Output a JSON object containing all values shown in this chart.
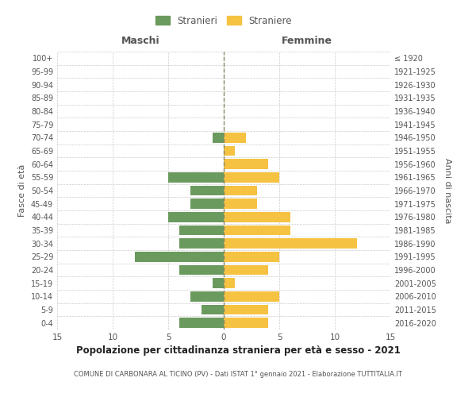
{
  "age_groups": [
    "0-4",
    "5-9",
    "10-14",
    "15-19",
    "20-24",
    "25-29",
    "30-34",
    "35-39",
    "40-44",
    "45-49",
    "50-54",
    "55-59",
    "60-64",
    "65-69",
    "70-74",
    "75-79",
    "80-84",
    "85-89",
    "90-94",
    "95-99",
    "100+"
  ],
  "birth_years": [
    "2016-2020",
    "2011-2015",
    "2006-2010",
    "2001-2005",
    "1996-2000",
    "1991-1995",
    "1986-1990",
    "1981-1985",
    "1976-1980",
    "1971-1975",
    "1966-1970",
    "1961-1965",
    "1956-1960",
    "1951-1955",
    "1946-1950",
    "1941-1945",
    "1936-1940",
    "1931-1935",
    "1926-1930",
    "1921-1925",
    "≤ 1920"
  ],
  "males": [
    4,
    2,
    3,
    1,
    4,
    8,
    4,
    4,
    5,
    3,
    3,
    5,
    0,
    0,
    1,
    0,
    0,
    0,
    0,
    0,
    0
  ],
  "females": [
    4,
    4,
    5,
    1,
    4,
    5,
    12,
    6,
    6,
    3,
    3,
    5,
    4,
    1,
    2,
    0,
    0,
    0,
    0,
    0,
    0
  ],
  "color_males": "#6b9a5e",
  "color_females": "#f5c242",
  "title": "Popolazione per cittadinanza straniera per età e sesso - 2021",
  "subtitle": "COMUNE DI CARBONARA AL TICINO (PV) - Dati ISTAT 1° gennaio 2021 - Elaborazione TUTTITALIA.IT",
  "legend_males": "Stranieri",
  "legend_females": "Straniere",
  "xlabel_left": "Maschi",
  "xlabel_right": "Femmine",
  "ylabel_left": "Fasce di età",
  "ylabel_right": "Anni di nascita",
  "xlim": 15,
  "background_color": "#ffffff",
  "grid_color": "#cccccc",
  "text_color": "#555555",
  "dashed_line_color": "#888866"
}
